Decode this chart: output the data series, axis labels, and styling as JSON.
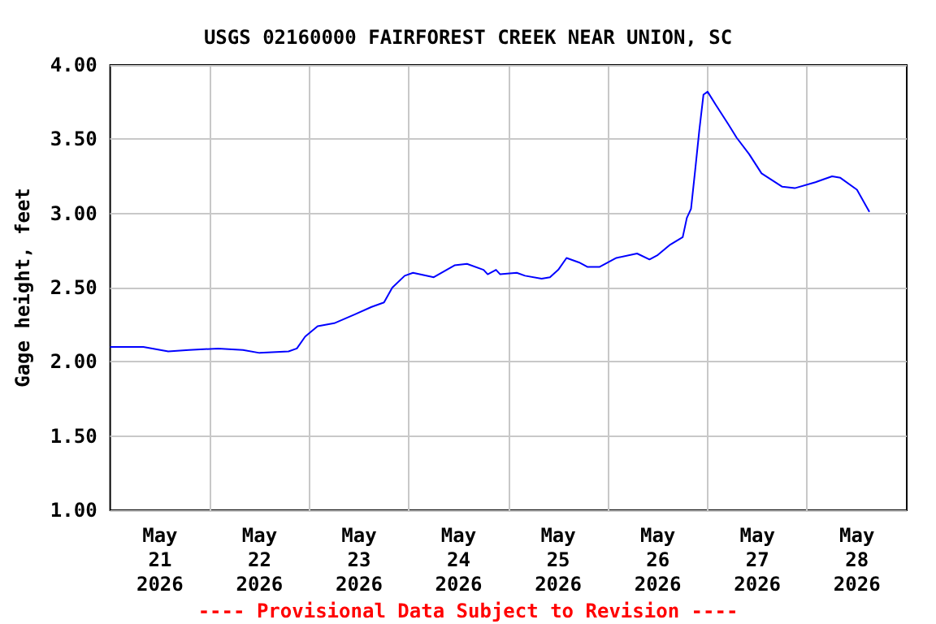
{
  "chart_data": {
    "type": "line",
    "title": "USGS 02160000 FAIRFOREST CREEK NEAR UNION, SC",
    "ylabel": "Gage height, feet",
    "annotations": [
      "---- Provisional Data Subject to Revision ----"
    ],
    "x": [
      "2026-05-21T00:00",
      "2026-05-21T08:00",
      "2026-05-21T14:00",
      "2026-05-21T19:00",
      "2026-05-22T02:00",
      "2026-05-22T08:00",
      "2026-05-22T12:00",
      "2026-05-22T19:00",
      "2026-05-22T21:00",
      "2026-05-22T23:00",
      "2026-05-23T02:00",
      "2026-05-23T06:00",
      "2026-05-23T11:00",
      "2026-05-23T15:00",
      "2026-05-23T18:00",
      "2026-05-23T20:00",
      "2026-05-23T23:00",
      "2026-05-24T01:00",
      "2026-05-24T06:00",
      "2026-05-24T11:00",
      "2026-05-24T14:00",
      "2026-05-24T18:00",
      "2026-05-24T19:00",
      "2026-05-24T21:00",
      "2026-05-24T22:00",
      "2026-05-25T02:00",
      "2026-05-25T04:00",
      "2026-05-25T08:00",
      "2026-05-25T10:00",
      "2026-05-25T12:00",
      "2026-05-25T14:00",
      "2026-05-25T17:00",
      "2026-05-25T19:00",
      "2026-05-25T22:00",
      "2026-05-26T02:00",
      "2026-05-26T07:00",
      "2026-05-26T10:00",
      "2026-05-26T12:00",
      "2026-05-26T15:00",
      "2026-05-26T18:00",
      "2026-05-26T19:00",
      "2026-05-26T20:00",
      "2026-05-26T21:00",
      "2026-05-26T22:00",
      "2026-05-26T23:00",
      "2026-05-27T00:00",
      "2026-05-27T02:00",
      "2026-05-27T05:00",
      "2026-05-27T07:00",
      "2026-05-27T10:00",
      "2026-05-27T13:00",
      "2026-05-27T18:00",
      "2026-05-27T21:00",
      "2026-05-28T02:00",
      "2026-05-28T06:00",
      "2026-05-28T08:00",
      "2026-05-28T12:00",
      "2026-05-28T15:00"
    ],
    "series": [
      {
        "color": "#0000ff",
        "values": [
          2.1,
          2.1,
          2.07,
          2.08,
          2.09,
          2.08,
          2.06,
          2.07,
          2.09,
          2.17,
          2.24,
          2.26,
          2.32,
          2.37,
          2.4,
          2.5,
          2.58,
          2.6,
          2.57,
          2.65,
          2.66,
          2.62,
          2.59,
          2.62,
          2.59,
          2.6,
          2.58,
          2.56,
          2.57,
          2.62,
          2.7,
          2.67,
          2.64,
          2.64,
          2.7,
          2.73,
          2.69,
          2.72,
          2.79,
          2.84,
          2.97,
          3.03,
          3.29,
          3.56,
          3.8,
          3.82,
          3.73,
          3.6,
          3.51,
          3.4,
          3.27,
          3.18,
          3.17,
          3.21,
          3.25,
          3.24,
          3.16,
          3.01
        ]
      }
    ],
    "xlim": [
      "2026-05-21T00:00",
      "2026-05-29T00:00"
    ],
    "xticks": [
      {
        "value": "2026-05-21T12:00",
        "label": "May\n21\n2026"
      },
      {
        "value": "2026-05-22T00:00",
        "label": null
      },
      {
        "value": "2026-05-22T12:00",
        "label": "May\n22\n2026"
      },
      {
        "value": "2026-05-23T00:00",
        "label": null
      },
      {
        "value": "2026-05-23T12:00",
        "label": "May\n23\n2026"
      },
      {
        "value": "2026-05-24T00:00",
        "label": null
      },
      {
        "value": "2026-05-24T12:00",
        "label": "May\n24\n2026"
      },
      {
        "value": "2026-05-25T00:00",
        "label": null
      },
      {
        "value": "2026-05-25T12:00",
        "label": "May\n25\n2026"
      },
      {
        "value": "2026-05-26T00:00",
        "label": null
      },
      {
        "value": "2026-05-26T12:00",
        "label": "May\n26\n2026"
      },
      {
        "value": "2026-05-27T00:00",
        "label": null
      },
      {
        "value": "2026-05-27T12:00",
        "label": "May\n27\n2026"
      },
      {
        "value": "2026-05-28T00:00",
        "label": null
      },
      {
        "value": "2026-05-28T12:00",
        "label": "May\n28\n2026"
      }
    ],
    "ylim": [
      1,
      4
    ],
    "yticks": [
      {
        "value": 1,
        "label": "1.00"
      },
      {
        "value": 1.5,
        "label": "1.50"
      },
      {
        "value": 2,
        "label": "2.00"
      },
      {
        "value": 2.5,
        "label": "2.50"
      },
      {
        "value": 3,
        "label": "3.00"
      },
      {
        "value": 3.5,
        "label": "3.50"
      },
      {
        "value": 4,
        "label": "4.00"
      }
    ],
    "grid": true,
    "marker": "none",
    "line_style": "solid"
  }
}
